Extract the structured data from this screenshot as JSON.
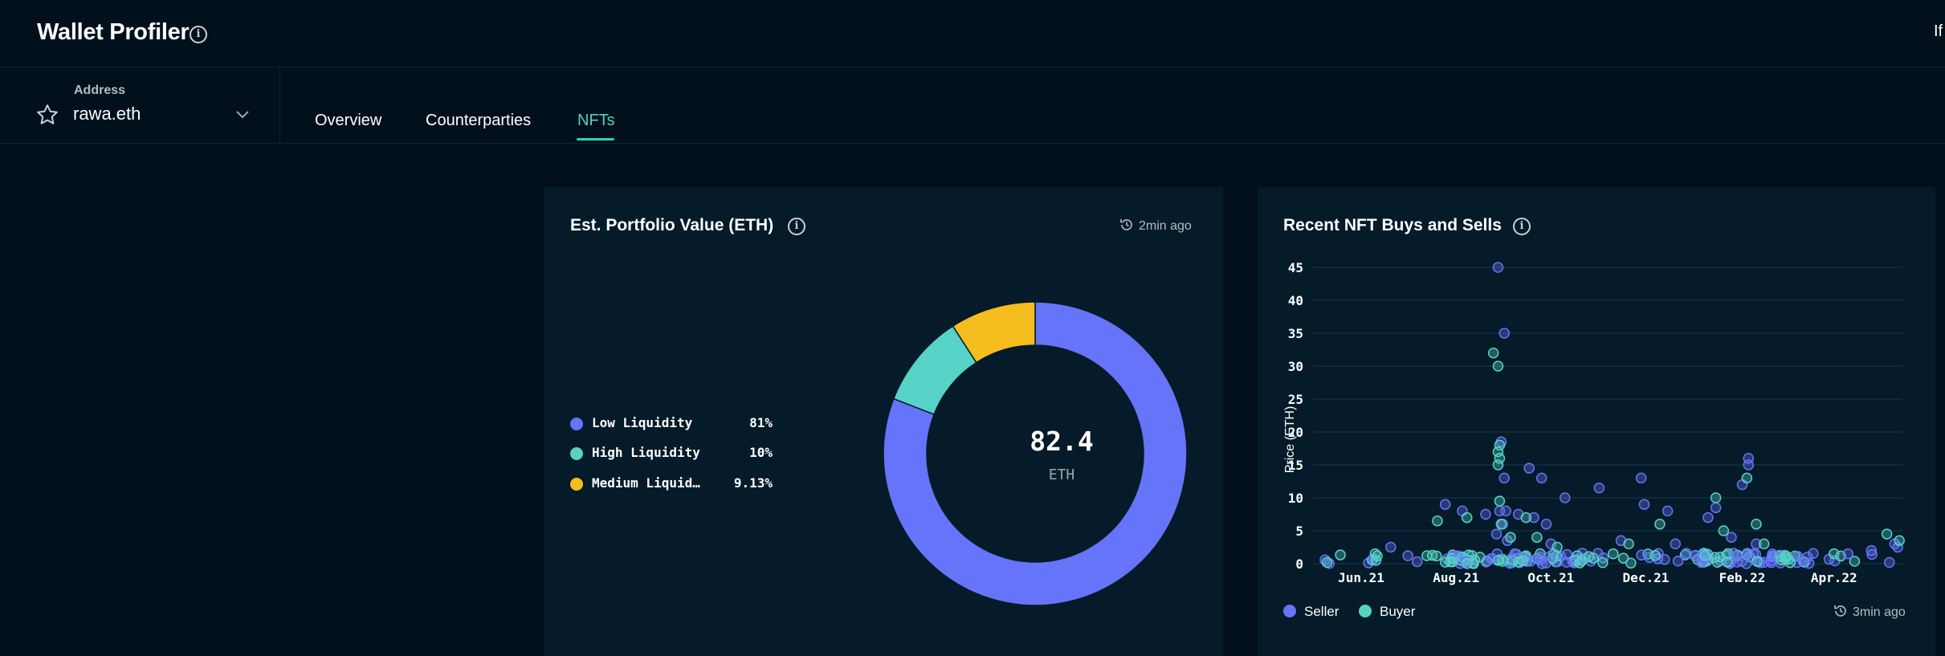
{
  "header": {
    "title": "Wallet Profiler",
    "right_text": "If"
  },
  "address": {
    "label": "Address",
    "value": "rawa.eth"
  },
  "tabs": [
    {
      "label": "Overview",
      "active": false
    },
    {
      "label": "Counterparties",
      "active": false
    },
    {
      "label": "NFTs",
      "active": true
    }
  ],
  "colors": {
    "accent": "#2fd1b2",
    "low": "#6574f8",
    "high": "#56d2c6",
    "medium": "#f5bd1d",
    "seller": "#6574f8",
    "buyer": "#56d2c6"
  },
  "portfolio": {
    "title": "Est. Portfolio Value (ETH)",
    "updated": "2min ago",
    "total": "82.4",
    "unit": "ETH",
    "legend": [
      {
        "name": "Low Liquidity",
        "pct": "81%",
        "color": "#6574f8"
      },
      {
        "name": "High Liquidity",
        "pct": "10%",
        "color": "#56d2c6"
      },
      {
        "name": "Medium Liquid…",
        "pct": "9.13%",
        "color": "#f5bd1d"
      }
    ]
  },
  "nft": {
    "title": "Recent NFT Buys and Sells",
    "updated": "3min ago",
    "legend": [
      {
        "name": "Seller",
        "color": "#6574f8"
      },
      {
        "name": "Buyer",
        "color": "#56d2c6"
      }
    ]
  },
  "chart_data": [
    {
      "type": "pie",
      "title": "Est. Portfolio Value (ETH)",
      "labels": [
        "Low Liquidity",
        "High Liquidity",
        "Medium Liquid…"
      ],
      "values": [
        81,
        10,
        9.13
      ],
      "colors": [
        "#6574f8",
        "#56d2c6",
        "#f5bd1d"
      ],
      "center_value": "82.4",
      "center_unit": "ETH"
    },
    {
      "type": "scatter",
      "title": "Recent NFT Buys and Sells",
      "ylabel": "Price (ETH)",
      "xlabel": "",
      "x_ticks": [
        "Jun.21",
        "Aug.21",
        "Oct.21",
        "Dec.21",
        "Feb.22",
        "Apr.22"
      ],
      "y_ticks": [
        0,
        5,
        10,
        15,
        20,
        25,
        30,
        35,
        40,
        45
      ],
      "ylim": [
        0,
        45
      ],
      "xlim": [
        "2021-05-01",
        "2022-05-15"
      ],
      "grid": true,
      "legend_position": "bottom-left",
      "series": [
        {
          "name": "Seller",
          "color": "#6574f8",
          "points": [
            [
              "2021-06-20",
              2.5
            ],
            [
              "2021-07-01",
              1.2
            ],
            [
              "2021-07-25",
              9.0
            ],
            [
              "2021-08-05",
              8.0
            ],
            [
              "2021-08-20",
              7.5
            ],
            [
              "2021-08-28",
              45.0
            ],
            [
              "2021-08-30",
              18.5
            ],
            [
              "2021-09-01",
              35.0
            ],
            [
              "2021-09-01",
              13.0
            ],
            [
              "2021-08-29",
              8.0
            ],
            [
              "2021-09-02",
              8.0
            ],
            [
              "2021-08-31",
              6.0
            ],
            [
              "2021-08-27",
              4.5
            ],
            [
              "2021-09-03",
              3.5
            ],
            [
              "2021-09-10",
              7.5
            ],
            [
              "2021-09-17",
              14.5
            ],
            [
              "2021-09-20",
              7.0
            ],
            [
              "2021-09-25",
              13.0
            ],
            [
              "2021-09-28",
              6.0
            ],
            [
              "2021-10-01",
              3.0
            ],
            [
              "2021-10-10",
              10.0
            ],
            [
              "2021-11-01",
              11.5
            ],
            [
              "2021-11-15",
              3.5
            ],
            [
              "2021-11-28",
              13.0
            ],
            [
              "2021-11-30",
              9.0
            ],
            [
              "2021-12-15",
              8.0
            ],
            [
              "2021-12-20",
              3.0
            ],
            [
              "2022-01-10",
              7.0
            ],
            [
              "2022-01-15",
              8.5
            ],
            [
              "2022-01-25",
              4.0
            ],
            [
              "2022-02-01",
              12.0
            ],
            [
              "2022-02-05",
              16.0
            ],
            [
              "2022-02-05",
              15.0
            ],
            [
              "2022-02-10",
              3.0
            ],
            [
              "2022-03-15",
              1.0
            ],
            [
              "2022-04-10",
              1.5
            ],
            [
              "2022-04-25",
              2.0
            ],
            [
              "2022-05-10",
              3.0
            ],
            [
              "2022-05-12",
              2.5
            ]
          ]
        },
        {
          "name": "Buyer",
          "color": "#56d2c6",
          "points": [
            [
              "2021-05-10",
              0.2
            ],
            [
              "2021-06-10",
              1.5
            ],
            [
              "2021-07-20",
              6.5
            ],
            [
              "2021-08-08",
              7.0
            ],
            [
              "2021-08-25",
              32.0
            ],
            [
              "2021-08-28",
              30.0
            ],
            [
              "2021-08-29",
              18.0
            ],
            [
              "2021-08-28",
              17.0
            ],
            [
              "2021-08-29",
              16.0
            ],
            [
              "2021-08-28",
              15.0
            ],
            [
              "2021-08-29",
              9.5
            ],
            [
              "2021-08-30",
              6.0
            ],
            [
              "2021-09-05",
              4.0
            ],
            [
              "2021-09-15",
              7.0
            ],
            [
              "2021-09-22",
              4.0
            ],
            [
              "2021-10-05",
              2.5
            ],
            [
              "2021-11-10",
              1.5
            ],
            [
              "2021-11-20",
              3.0
            ],
            [
              "2021-12-10",
              6.0
            ],
            [
              "2022-01-15",
              10.0
            ],
            [
              "2022-01-20",
              5.0
            ],
            [
              "2022-02-04",
              13.0
            ],
            [
              "2022-02-10",
              6.0
            ],
            [
              "2022-02-15",
              3.0
            ],
            [
              "2022-03-01",
              1.0
            ],
            [
              "2022-04-01",
              1.5
            ],
            [
              "2022-05-05",
              4.5
            ],
            [
              "2022-05-13",
              3.5
            ]
          ]
        }
      ]
    }
  ]
}
